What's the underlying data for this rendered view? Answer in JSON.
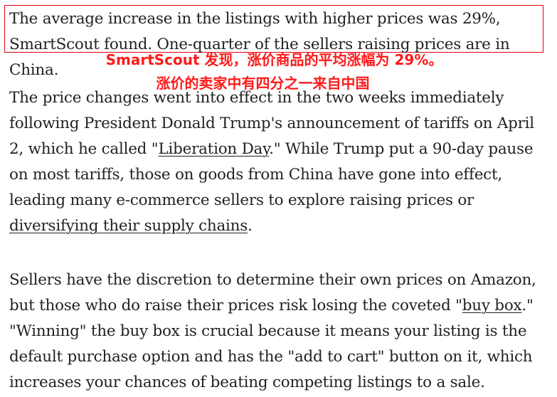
{
  "paragraph1": {
    "text": "The average increase in the listings with higher prices was 29%, SmartScout found. One-quarter of the sellers raising prices are in China."
  },
  "annotation": {
    "line1": "SmartScout 发现，涨价商品的平均涨幅为 29%。",
    "line2": "涨价的卖家中有四分之一来自中国",
    "color": "#ff1a1a",
    "box_color": "#e0000f"
  },
  "paragraph2": {
    "part1": "The price changes went into effect in the two weeks immediately following President Donald Trump's announcement of tariffs on April 2, which he called \"",
    "link1": "Liberation Day",
    "part2": ".\" While Trump put a 90-day pause on most tariffs, those on goods from China have gone into effect, leading many e-commerce sellers to explore raising prices or ",
    "link2": "diversifying their supply chains",
    "part3": "."
  },
  "paragraph3": {
    "part1": "Sellers have the discretion to determine their own prices on Amazon, but those who do raise their prices risk losing the coveted \"",
    "link1": "buy box",
    "part2": ".\" \"Winning\" the buy box is crucial because it means your listing is the default purchase option and has the \"add to cart\" button on it, which increases your chances of beating competing listings to a sale."
  }
}
